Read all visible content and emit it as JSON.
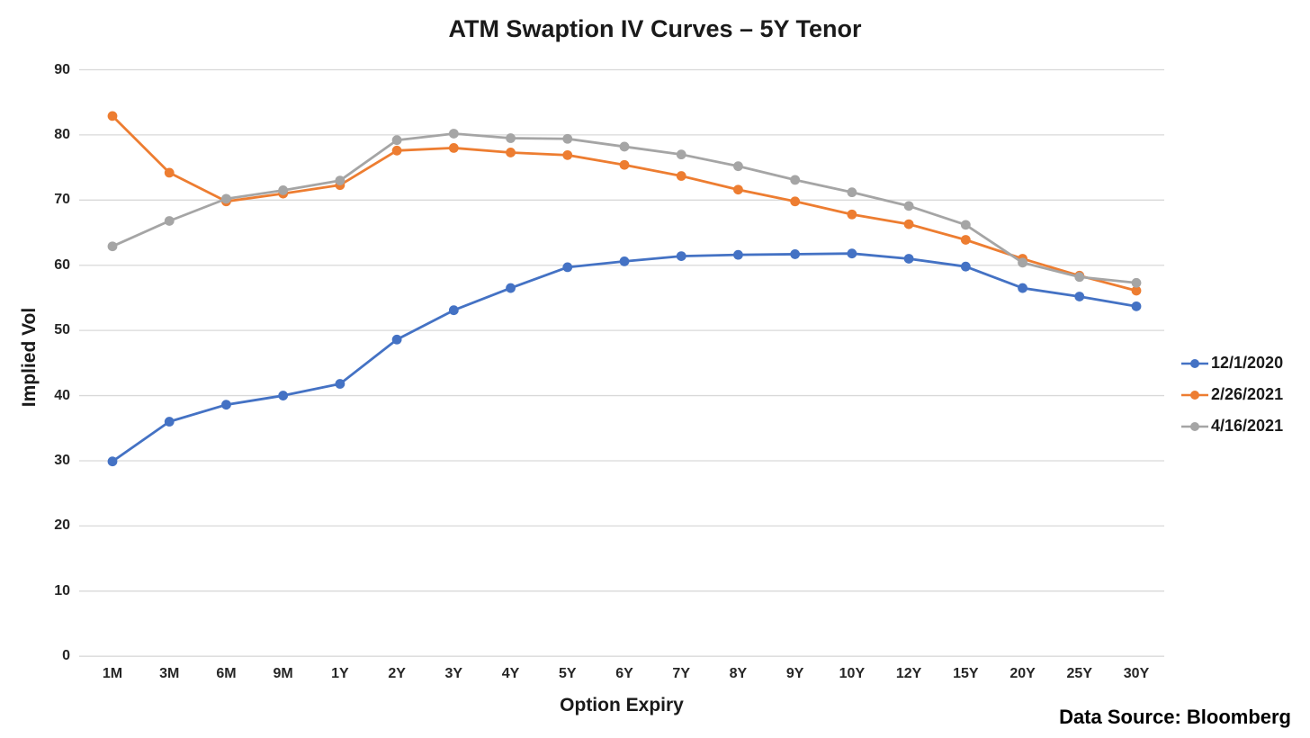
{
  "chart_data": {
    "type": "line",
    "title": "ATM Swaption IV Curves – 5Y Tenor",
    "xlabel": "Option Expiry",
    "ylabel": "Implied Vol",
    "ylim": [
      0,
      90
    ],
    "ytick_step": 10,
    "grid": true,
    "legend_position": "right",
    "categories": [
      "1M",
      "3M",
      "6M",
      "9M",
      "1Y",
      "2Y",
      "3Y",
      "4Y",
      "5Y",
      "6Y",
      "7Y",
      "8Y",
      "9Y",
      "10Y",
      "12Y",
      "15Y",
      "20Y",
      "25Y",
      "30Y"
    ],
    "series": [
      {
        "name": "12/1/2020",
        "color": "#4472C4",
        "values": [
          29.9,
          36.0,
          38.6,
          40.0,
          41.8,
          48.6,
          53.1,
          56.5,
          59.7,
          60.6,
          61.4,
          61.6,
          61.7,
          61.8,
          61.0,
          59.8,
          56.5,
          55.2,
          53.7
        ]
      },
      {
        "name": "2/26/2021",
        "color": "#ED7D31",
        "values": [
          82.9,
          74.2,
          69.8,
          71.0,
          72.3,
          77.6,
          78.0,
          77.3,
          76.9,
          75.4,
          73.7,
          71.6,
          69.8,
          67.8,
          66.3,
          63.9,
          61.0,
          58.4,
          56.1
        ]
      },
      {
        "name": "4/16/2021",
        "color": "#A5A5A5",
        "values": [
          62.9,
          66.8,
          70.2,
          71.5,
          73.0,
          79.2,
          80.2,
          79.5,
          79.4,
          78.2,
          77.0,
          75.2,
          73.1,
          71.2,
          69.1,
          66.2,
          60.4,
          58.2,
          57.3
        ]
      }
    ]
  },
  "footer": {
    "data_source": "Data Source: Bloomberg"
  },
  "colors": {
    "background": "#FFFFFF",
    "gridline": "#D9D9D9",
    "text": "#262626"
  }
}
